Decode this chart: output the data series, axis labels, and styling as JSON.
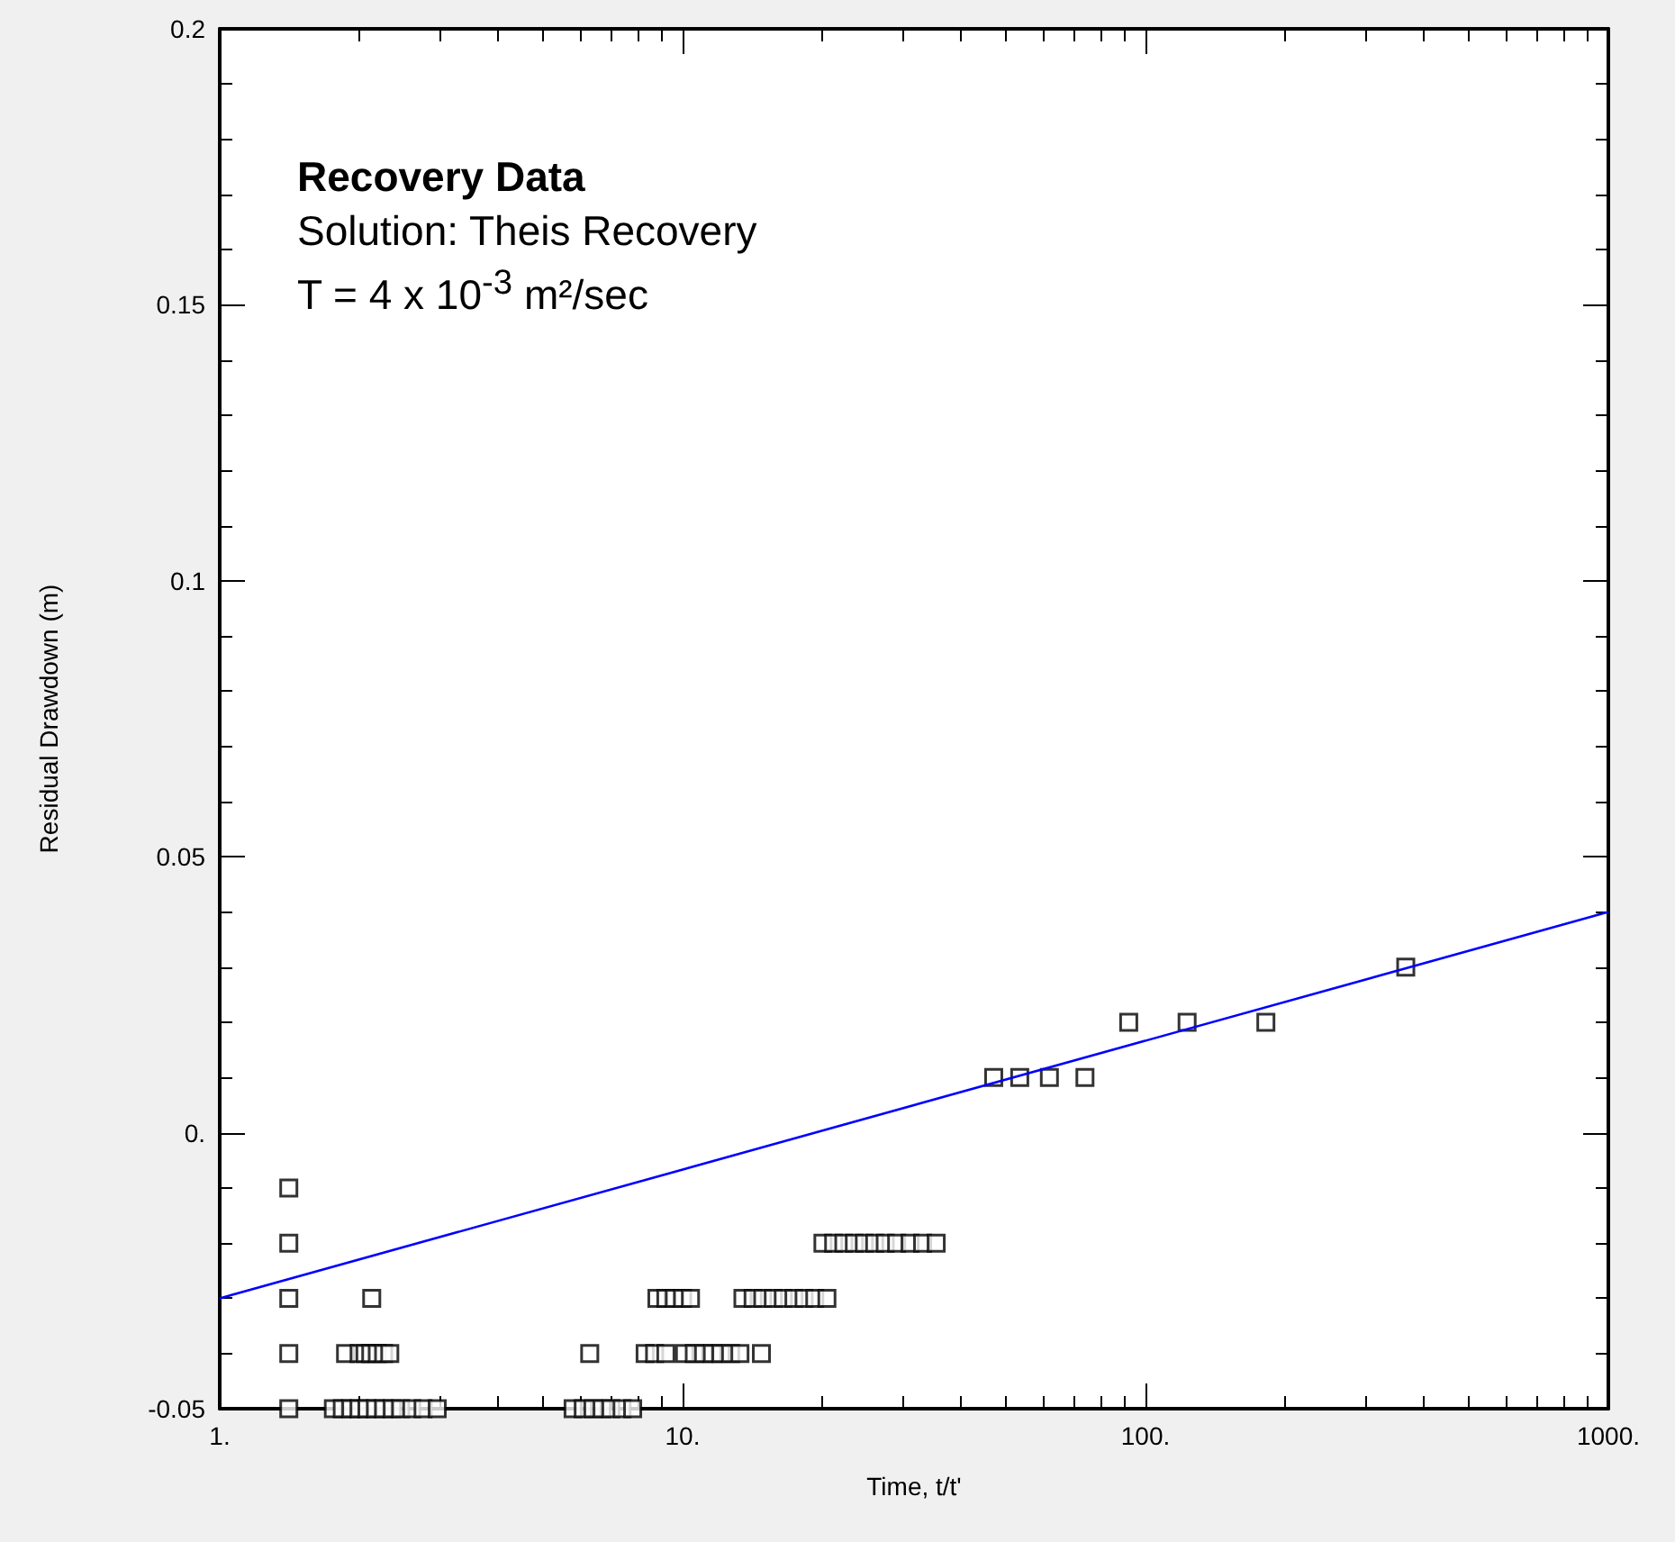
{
  "chart_data": {
    "type": "scatter",
    "title": "Recovery Data",
    "xlabel": "Time, t/t'",
    "ylabel": "Residual Drawdown (m)",
    "annotations": [
      "Solution: Theis Recovery",
      "T = 4 x 10$^{-3}$ m²/sec"
    ],
    "log": "x",
    "grid": false,
    "marker": "square",
    "xlim": [
      1,
      1000
    ],
    "xticks": [
      {
        "value": 1,
        "label": "1."
      },
      {
        "value": 10,
        "label": "10."
      },
      {
        "value": 100,
        "label": "100."
      },
      {
        "value": 1000,
        "label": "1000."
      }
    ],
    "ylim": [
      -0.05,
      0.2
    ],
    "yticks": [
      -0.05,
      {
        "value": 0,
        "label": "0."
      },
      0.05,
      0.1,
      0.15,
      0.2
    ],
    "series": [
      {
        "color": "#000000",
        "x": [
          1.41,
          1.41,
          20.1,
          21.2,
          22.3,
          23.5,
          24.7,
          26,
          27.4,
          29,
          31,
          33,
          35.3,
          1.41,
          2.13,
          8.8,
          9.2,
          9.6,
          10,
          10.4,
          13.5,
          14.2,
          14.9,
          15.7,
          16.5,
          17.4,
          18.3,
          19.3,
          20.5,
          1.41,
          1.87,
          2.0,
          2.06,
          2.12,
          2.19,
          2.26,
          2.33,
          6.3,
          8.3,
          8.7,
          9.2,
          10.1,
          10.6,
          11.1,
          11.6,
          12.1,
          12.7,
          13.3,
          14.8,
          1.41,
          1.76,
          1.84,
          1.92,
          2.0,
          2.08,
          2.17,
          2.26,
          2.36,
          2.46,
          2.6,
          2.75,
          2.95,
          5.8,
          6.1,
          6.4,
          6.7,
          7.0,
          7.4,
          7.8,
          47,
          53.5,
          62,
          74,
          92,
          123,
          182,
          365
        ],
        "values": [
          -0.01,
          -0.02,
          -0.02,
          -0.02,
          -0.02,
          -0.02,
          -0.02,
          -0.02,
          -0.02,
          -0.02,
          -0.02,
          -0.02,
          -0.02,
          -0.03,
          -0.03,
          -0.03,
          -0.03,
          -0.03,
          -0.03,
          -0.03,
          -0.03,
          -0.03,
          -0.03,
          -0.03,
          -0.03,
          -0.03,
          -0.03,
          -0.03,
          -0.03,
          -0.04,
          -0.04,
          -0.04,
          -0.04,
          -0.04,
          -0.04,
          -0.04,
          -0.04,
          -0.04,
          -0.04,
          -0.04,
          -0.04,
          -0.04,
          -0.04,
          -0.04,
          -0.04,
          -0.04,
          -0.04,
          -0.04,
          -0.04,
          -0.05,
          -0.05,
          -0.05,
          -0.05,
          -0.05,
          -0.05,
          -0.05,
          -0.05,
          -0.05,
          -0.05,
          -0.05,
          -0.05,
          -0.05,
          -0.05,
          -0.05,
          -0.05,
          -0.05,
          -0.05,
          -0.05,
          -0.05,
          0.01,
          0.01,
          0.01,
          0.01,
          0.02,
          0.02,
          0.02,
          0.03
        ]
      },
      {
        "type": "line",
        "color": "#0000ff",
        "line_style": "solid",
        "marker": "none",
        "x": [
          1,
          1000
        ],
        "values": [
          -0.03,
          0.04
        ]
      }
    ]
  }
}
